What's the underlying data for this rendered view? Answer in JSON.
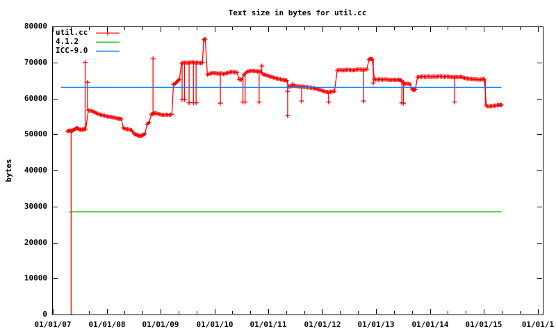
{
  "title": "Text size in bytes for util.cc",
  "y_axis_label": "bytes",
  "colors": {
    "series_red": "#ff0000",
    "ref_green": "#00b000",
    "ref_blue": "#0080ff",
    "axis": "#000000",
    "background": "#ffffff"
  },
  "legend": {
    "entries": [
      {
        "label": "util.cc",
        "color": "#ff0000",
        "style": "linespoints"
      },
      {
        "label": "4.1.2",
        "color": "#00b000",
        "style": "line"
      },
      {
        "label": "ICC-9.0",
        "color": "#0080ff",
        "style": "line"
      }
    ]
  },
  "chart_data": {
    "type": "line",
    "title": "Text size in bytes for util.cc",
    "xlabel": "",
    "ylabel": "bytes",
    "ylim": [
      0,
      80000
    ],
    "ytick_step": 10000,
    "ytick_labels": [
      "0",
      "10000",
      "20000",
      "30000",
      "40000",
      "50000",
      "60000",
      "70000",
      "80000"
    ],
    "xlim_years": [
      2007.0,
      2016.1
    ],
    "xtick_years": [
      2007,
      2008,
      2009,
      2010,
      2011,
      2012,
      2013,
      2014,
      2015,
      2016
    ],
    "xtick_labels": [
      "01/01/07",
      "01/01/08",
      "01/01/09",
      "01/01/10",
      "01/01/11",
      "01/01/12",
      "01/01/13",
      "01/01/14",
      "01/01/15",
      "01/01/1"
    ],
    "minor_xticks_per_year": 2,
    "grid": false,
    "legend_position": "top-left-inside",
    "series": [
      {
        "name": "util.cc",
        "color": "#ff0000",
        "points": [
          [
            2007.27,
            50900
          ],
          [
            2007.31,
            51100
          ],
          [
            2007.35,
            51000
          ],
          [
            2007.38,
            51200
          ],
          [
            2007.42,
            51600
          ],
          [
            2007.45,
            51800
          ],
          [
            2007.49,
            51400
          ],
          [
            2007.53,
            51300
          ],
          [
            2007.57,
            51400
          ],
          [
            2007.61,
            51500
          ],
          [
            2007.66,
            56700
          ],
          [
            2007.71,
            56600
          ],
          [
            2007.76,
            56300
          ],
          [
            2007.81,
            55900
          ],
          [
            2007.86,
            55600
          ],
          [
            2007.91,
            55400
          ],
          [
            2007.96,
            55200
          ],
          [
            2008.01,
            55000
          ],
          [
            2008.06,
            54900
          ],
          [
            2008.11,
            54800
          ],
          [
            2008.16,
            54600
          ],
          [
            2008.21,
            54400
          ],
          [
            2008.27,
            54300
          ],
          [
            2008.31,
            51800
          ],
          [
            2008.36,
            51500
          ],
          [
            2008.41,
            51400
          ],
          [
            2008.46,
            51200
          ],
          [
            2008.51,
            50200
          ],
          [
            2008.55,
            49900
          ],
          [
            2008.59,
            49700
          ],
          [
            2008.63,
            49600
          ],
          [
            2008.67,
            49800
          ],
          [
            2008.71,
            50200
          ],
          [
            2008.75,
            52800
          ],
          [
            2008.79,
            53400
          ],
          [
            2008.83,
            55600
          ],
          [
            2008.87,
            55800
          ],
          [
            2008.91,
            55900
          ],
          [
            2008.96,
            55700
          ],
          [
            2009.01,
            55500
          ],
          [
            2009.06,
            55400
          ],
          [
            2009.11,
            55500
          ],
          [
            2009.16,
            55400
          ],
          [
            2009.21,
            55600
          ],
          [
            2009.24,
            63900
          ],
          [
            2009.28,
            64200
          ],
          [
            2009.32,
            64900
          ],
          [
            2009.35,
            65300
          ],
          [
            2009.39,
            69800
          ],
          [
            2009.44,
            70000
          ],
          [
            2009.49,
            69900
          ],
          [
            2009.54,
            70000
          ],
          [
            2009.59,
            70100
          ],
          [
            2009.64,
            69900
          ],
          [
            2009.69,
            70000
          ],
          [
            2009.74,
            69800
          ],
          [
            2009.78,
            70000
          ],
          [
            2009.8,
            76300
          ],
          [
            2009.83,
            76500
          ],
          [
            2009.87,
            66600
          ],
          [
            2009.92,
            66900
          ],
          [
            2009.97,
            67100
          ],
          [
            2010.02,
            67000
          ],
          [
            2010.07,
            66900
          ],
          [
            2010.12,
            67000
          ],
          [
            2010.17,
            66800
          ],
          [
            2010.22,
            67000
          ],
          [
            2010.27,
            67200
          ],
          [
            2010.32,
            67400
          ],
          [
            2010.37,
            67300
          ],
          [
            2010.42,
            67200
          ],
          [
            2010.46,
            65300
          ],
          [
            2010.5,
            65200
          ],
          [
            2010.55,
            66600
          ],
          [
            2010.6,
            67400
          ],
          [
            2010.65,
            67600
          ],
          [
            2010.7,
            67700
          ],
          [
            2010.75,
            67600
          ],
          [
            2010.8,
            67500
          ],
          [
            2010.85,
            67600
          ],
          [
            2010.9,
            66700
          ],
          [
            2010.95,
            66500
          ],
          [
            2011.0,
            66300
          ],
          [
            2011.05,
            66000
          ],
          [
            2011.1,
            65800
          ],
          [
            2011.15,
            65600
          ],
          [
            2011.2,
            65400
          ],
          [
            2011.25,
            65200
          ],
          [
            2011.3,
            65100
          ],
          [
            2011.34,
            65000
          ],
          [
            2011.38,
            63300
          ],
          [
            2011.43,
            63400
          ],
          [
            2011.455,
            64000
          ],
          [
            2011.48,
            63500
          ],
          [
            2011.53,
            63400
          ],
          [
            2011.58,
            63300
          ],
          [
            2011.63,
            63300
          ],
          [
            2011.68,
            63200
          ],
          [
            2011.73,
            63100
          ],
          [
            2011.78,
            63000
          ],
          [
            2011.83,
            62900
          ],
          [
            2011.88,
            62700
          ],
          [
            2011.93,
            62500
          ],
          [
            2011.98,
            62300
          ],
          [
            2012.03,
            62000
          ],
          [
            2012.08,
            61800
          ],
          [
            2012.13,
            61800
          ],
          [
            2012.18,
            61900
          ],
          [
            2012.23,
            62000
          ],
          [
            2012.28,
            67800
          ],
          [
            2012.33,
            67900
          ],
          [
            2012.38,
            67800
          ],
          [
            2012.43,
            67900
          ],
          [
            2012.48,
            68000
          ],
          [
            2012.53,
            67900
          ],
          [
            2012.58,
            67800
          ],
          [
            2012.63,
            68000
          ],
          [
            2012.68,
            68100
          ],
          [
            2012.73,
            68000
          ],
          [
            2012.78,
            68000
          ],
          [
            2012.83,
            68100
          ],
          [
            2012.87,
            70800
          ],
          [
            2012.9,
            71000
          ],
          [
            2012.93,
            70900
          ],
          [
            2012.97,
            65300
          ],
          [
            2013.02,
            65200
          ],
          [
            2013.07,
            65300
          ],
          [
            2013.12,
            65200
          ],
          [
            2013.17,
            65300
          ],
          [
            2013.22,
            65200
          ],
          [
            2013.27,
            65100
          ],
          [
            2013.32,
            65200
          ],
          [
            2013.37,
            65100
          ],
          [
            2013.42,
            65200
          ],
          [
            2013.46,
            65100
          ],
          [
            2013.53,
            64000
          ],
          [
            2013.58,
            64100
          ],
          [
            2013.63,
            64000
          ],
          [
            2013.67,
            62600
          ],
          [
            2013.7,
            62400
          ],
          [
            2013.73,
            62500
          ],
          [
            2013.77,
            65900
          ],
          [
            2013.82,
            66000
          ],
          [
            2013.87,
            66100
          ],
          [
            2013.92,
            66000
          ],
          [
            2013.97,
            66100
          ],
          [
            2014.02,
            66000
          ],
          [
            2014.07,
            66100
          ],
          [
            2014.12,
            66000
          ],
          [
            2014.17,
            66200
          ],
          [
            2014.22,
            66100
          ],
          [
            2014.27,
            66000
          ],
          [
            2014.32,
            66100
          ],
          [
            2014.37,
            66000
          ],
          [
            2014.42,
            65900
          ],
          [
            2014.47,
            66000
          ],
          [
            2014.52,
            65900
          ],
          [
            2014.57,
            66000
          ],
          [
            2014.62,
            65800
          ],
          [
            2014.67,
            65600
          ],
          [
            2014.72,
            65500
          ],
          [
            2014.77,
            65400
          ],
          [
            2014.82,
            65300
          ],
          [
            2014.87,
            65300
          ],
          [
            2014.92,
            65200
          ],
          [
            2014.97,
            65300
          ],
          [
            2015.01,
            65400
          ],
          [
            2015.05,
            57900
          ],
          [
            2015.1,
            57800
          ],
          [
            2015.15,
            57900
          ],
          [
            2015.2,
            58000
          ],
          [
            2015.25,
            58100
          ],
          [
            2015.3,
            58200
          ],
          [
            2015.33,
            58200
          ]
        ],
        "error_spikes": [
          {
            "x": 2007.34,
            "from": 0,
            "to": 51000,
            "markers": []
          },
          {
            "x": 2007.6,
            "from": 51400,
            "to": 70000,
            "markers": [
              70000
            ]
          },
          {
            "x": 2007.645,
            "from": 56600,
            "to": 64500,
            "markers": [
              64500
            ]
          },
          {
            "x": 2008.86,
            "from": 55800,
            "to": 71000,
            "markers": [
              71000
            ]
          },
          {
            "x": 2009.4,
            "from": 59700,
            "to": 69800,
            "markers": [
              59700
            ]
          },
          {
            "x": 2009.445,
            "from": 59700,
            "to": 70000,
            "markers": [
              59700
            ]
          },
          {
            "x": 2009.53,
            "from": 58800,
            "to": 70000,
            "markers": [
              58800
            ]
          },
          {
            "x": 2009.61,
            "from": 58800,
            "to": 70000,
            "markers": [
              58800
            ]
          },
          {
            "x": 2009.66,
            "from": 58800,
            "to": 70100,
            "markers": [
              58800
            ]
          },
          {
            "x": 2010.11,
            "from": 58700,
            "to": 67000,
            "markers": [
              58700
            ]
          },
          {
            "x": 2010.53,
            "from": 59000,
            "to": 66500,
            "markers": [
              59000
            ]
          },
          {
            "x": 2010.57,
            "from": 59000,
            "to": 66600,
            "markers": [
              59000
            ]
          },
          {
            "x": 2010.83,
            "from": 59000,
            "to": 67500,
            "markers": [
              59000
            ]
          },
          {
            "x": 2010.88,
            "from": 67500,
            "to": 69000,
            "markers": [
              69000
            ]
          },
          {
            "x": 2011.36,
            "from": 54900,
            "to": 65000,
            "markers": [
              55200,
              62000
            ]
          },
          {
            "x": 2011.62,
            "from": 59300,
            "to": 63300,
            "markers": [
              59300
            ]
          },
          {
            "x": 2012.12,
            "from": 59000,
            "to": 61800,
            "markers": [
              59000
            ]
          },
          {
            "x": 2012.77,
            "from": 59300,
            "to": 68000,
            "markers": [
              59300
            ]
          },
          {
            "x": 2012.95,
            "from": 64300,
            "to": 70900,
            "markers": [
              64300
            ]
          },
          {
            "x": 2013.48,
            "from": 58800,
            "to": 65100,
            "markers": [
              58800
            ]
          },
          {
            "x": 2013.51,
            "from": 58700,
            "to": 65100,
            "markers": [
              58700
            ]
          },
          {
            "x": 2014.46,
            "from": 59000,
            "to": 66000,
            "markers": [
              59000
            ]
          },
          {
            "x": 2015.03,
            "from": 57800,
            "to": 65400,
            "markers": []
          }
        ]
      },
      {
        "name": "4.1.2",
        "color": "#00b000",
        "ref_value": 28600,
        "x_range": [
          2007.3,
          2015.33
        ]
      },
      {
        "name": "ICC-9.0",
        "color": "#0080ff",
        "ref_value": 63200,
        "x_range": [
          2007.15,
          2015.33
        ]
      }
    ]
  }
}
